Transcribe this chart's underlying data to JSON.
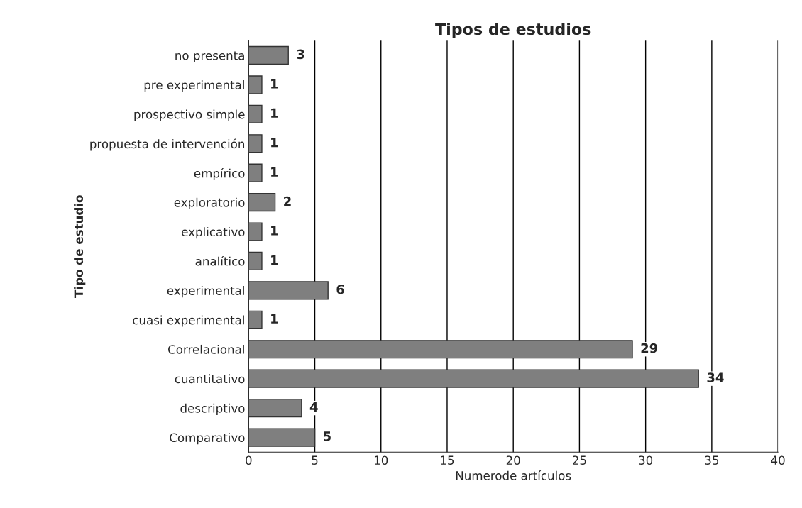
{
  "chart_data": {
    "type": "bar",
    "orientation": "horizontal",
    "title": "Tipos de estudios",
    "xlabel": "Numerode artículos",
    "ylabel": "Tipo de estudio",
    "categories": [
      "no presenta",
      "pre experimental",
      "prospectivo simple",
      "propuesta de intervención",
      "empírico",
      "exploratorio",
      "explicativo",
      "analítico",
      "experimental",
      "cuasi experimental",
      "Correlacional",
      "cuantitativo",
      "descriptivo",
      "Comparativo"
    ],
    "values": [
      3,
      1,
      1,
      1,
      1,
      2,
      1,
      1,
      6,
      1,
      29,
      34,
      4,
      5
    ],
    "color": "#7f7f7f",
    "xlim": [
      0,
      40
    ],
    "xticks": [
      0,
      5,
      10,
      15,
      20,
      25,
      30,
      35,
      40
    ],
    "grid": "x",
    "data_labels": true
  }
}
